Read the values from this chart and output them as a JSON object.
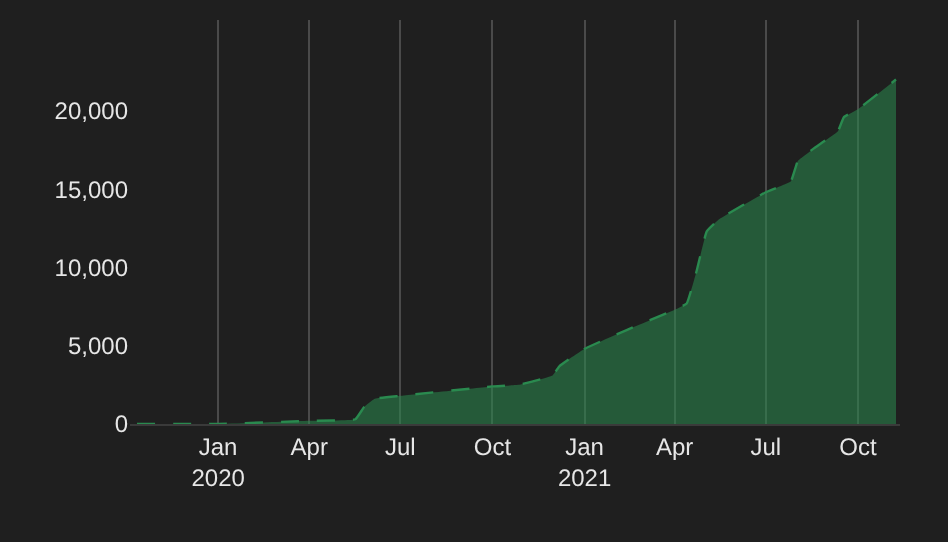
{
  "chart_data": {
    "type": "area",
    "x": [
      "2019-10-12",
      "2020-01-01",
      "2020-04-01",
      "2020-05-17",
      "2020-05-26",
      "2020-06-05",
      "2020-07-01",
      "2020-10-01",
      "2020-10-27",
      "2020-11-30",
      "2020-12-07",
      "2021-01-01",
      "2021-02-12",
      "2021-04-01",
      "2021-04-13",
      "2021-04-23",
      "2021-05-03",
      "2021-05-16",
      "2021-07-01",
      "2021-07-26",
      "2021-08-02",
      "2021-08-18",
      "2021-09-11",
      "2021-09-17",
      "2021-10-01",
      "2021-11-08"
    ],
    "series": [
      {
        "color": "#2a8a4f",
        "values": [
          0,
          0,
          200,
          300,
          1100,
          1600,
          1800,
          2400,
          2500,
          3100,
          3700,
          4800,
          6000,
          7300,
          7700,
          9800,
          12300,
          13100,
          14800,
          15500,
          16800,
          17600,
          18700,
          19600,
          20100,
          22000
        ]
      }
    ],
    "xlim": [
      "2019-10-05",
      "2021-11-12"
    ],
    "xticks": [
      {
        "value": "2020-01-01",
        "label": "Jan\n2020"
      },
      {
        "value": "2020-04-01",
        "label": "Apr"
      },
      {
        "value": "2020-07-01",
        "label": "Jul"
      },
      {
        "value": "2020-10-01",
        "label": "Oct"
      },
      {
        "value": "2021-01-01",
        "label": "Jan\n2021"
      },
      {
        "value": "2021-04-01",
        "label": "Apr"
      },
      {
        "value": "2021-07-01",
        "label": "Jul"
      },
      {
        "value": "2021-10-01",
        "label": "Oct"
      }
    ],
    "ylim": [
      0,
      25800
    ],
    "yticks": [
      0,
      {
        "value": 5000,
        "label": "5,000"
      },
      {
        "value": 10000,
        "label": "10,000"
      },
      {
        "value": 15000,
        "label": "15,000"
      },
      {
        "value": 20000,
        "label": "20,000"
      }
    ],
    "grid": "x",
    "line_style": "dashed",
    "marker": "none"
  }
}
